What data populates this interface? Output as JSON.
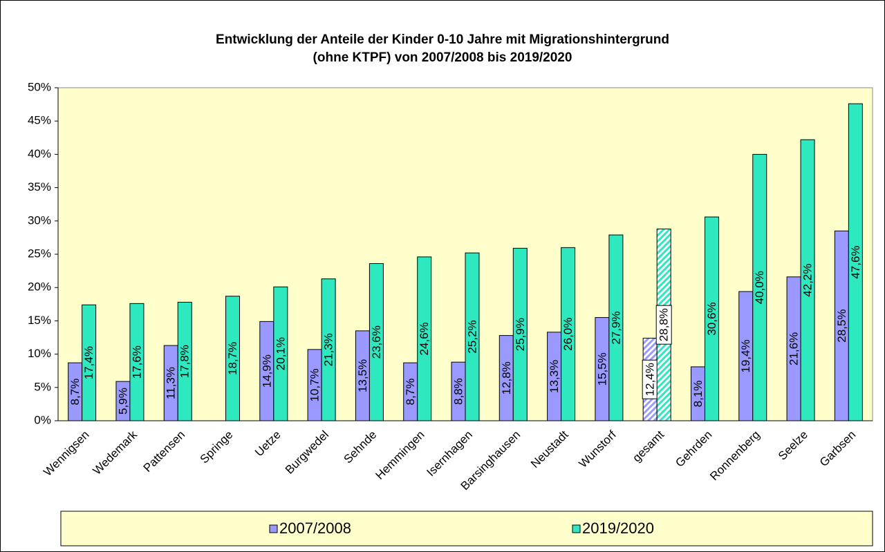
{
  "chart_data": {
    "type": "bar",
    "title": [
      "Entwicklung der Anteile der Kinder 0-10 Jahre mit Migrationshintergrund",
      "(ohne KTPF) von 2007/2008 bis 2019/2020"
    ],
    "categories": [
      "Wennigsen",
      "Wedemark",
      "Pattensen",
      "Springe",
      "Uetze",
      "Burgwedel",
      "Sehnde",
      "Hemmingen",
      "Isernhagen",
      "Barsinghausen",
      "Neustadt",
      "Wunstorf",
      "gesamt",
      "Gehrden",
      "Ronnenberg",
      "Seelze",
      "Garbsen"
    ],
    "series": [
      {
        "name": "2007/2008",
        "color": "#9999ff",
        "values": [
          8.7,
          5.9,
          11.3,
          null,
          14.9,
          10.7,
          13.5,
          8.7,
          8.8,
          12.8,
          13.3,
          15.5,
          12.4,
          8.1,
          19.4,
          21.6,
          28.5
        ],
        "value_labels": [
          "8,7%",
          "5,9%",
          "11,3%",
          null,
          "14,9%",
          "10,7%",
          "13,5%",
          "8,7%",
          "8,8%",
          "12,8%",
          "13,3%",
          "15,5%",
          "12,4%",
          "8,1%",
          "19,4%",
          "21,6%",
          "28,5%"
        ]
      },
      {
        "name": "2019/2020",
        "color": "#2ee8c0",
        "values": [
          17.4,
          17.6,
          17.8,
          18.7,
          20.1,
          21.3,
          23.6,
          24.6,
          25.2,
          25.9,
          26.0,
          27.9,
          28.8,
          30.6,
          40.0,
          42.2,
          47.6
        ],
        "value_labels": [
          "17,4%",
          "17,6%",
          "17,8%",
          "18,7%",
          "20,1%",
          "21,3%",
          "23,6%",
          "24,6%",
          "25,2%",
          "25,9%",
          "26,0%",
          "27,9%",
          "28,8%",
          "30,6%",
          "40,0%",
          "42,2%",
          "47,6%"
        ]
      }
    ],
    "highlight_index": 12,
    "ylim": [
      0,
      50
    ],
    "yticks": [
      {
        "value": 0,
        "label": "0%"
      },
      {
        "value": 5,
        "label": "5%"
      },
      {
        "value": 10,
        "label": "10%"
      },
      {
        "value": 15,
        "label": "15%"
      },
      {
        "value": 20,
        "label": "20%"
      },
      {
        "value": 25,
        "label": "25%"
      },
      {
        "value": 30,
        "label": "30%"
      },
      {
        "value": 35,
        "label": "35%"
      },
      {
        "value": 40,
        "label": "40%"
      },
      {
        "value": 45,
        "label": "45%"
      },
      {
        "value": 50,
        "label": "50%"
      }
    ],
    "legend": "bottom"
  }
}
